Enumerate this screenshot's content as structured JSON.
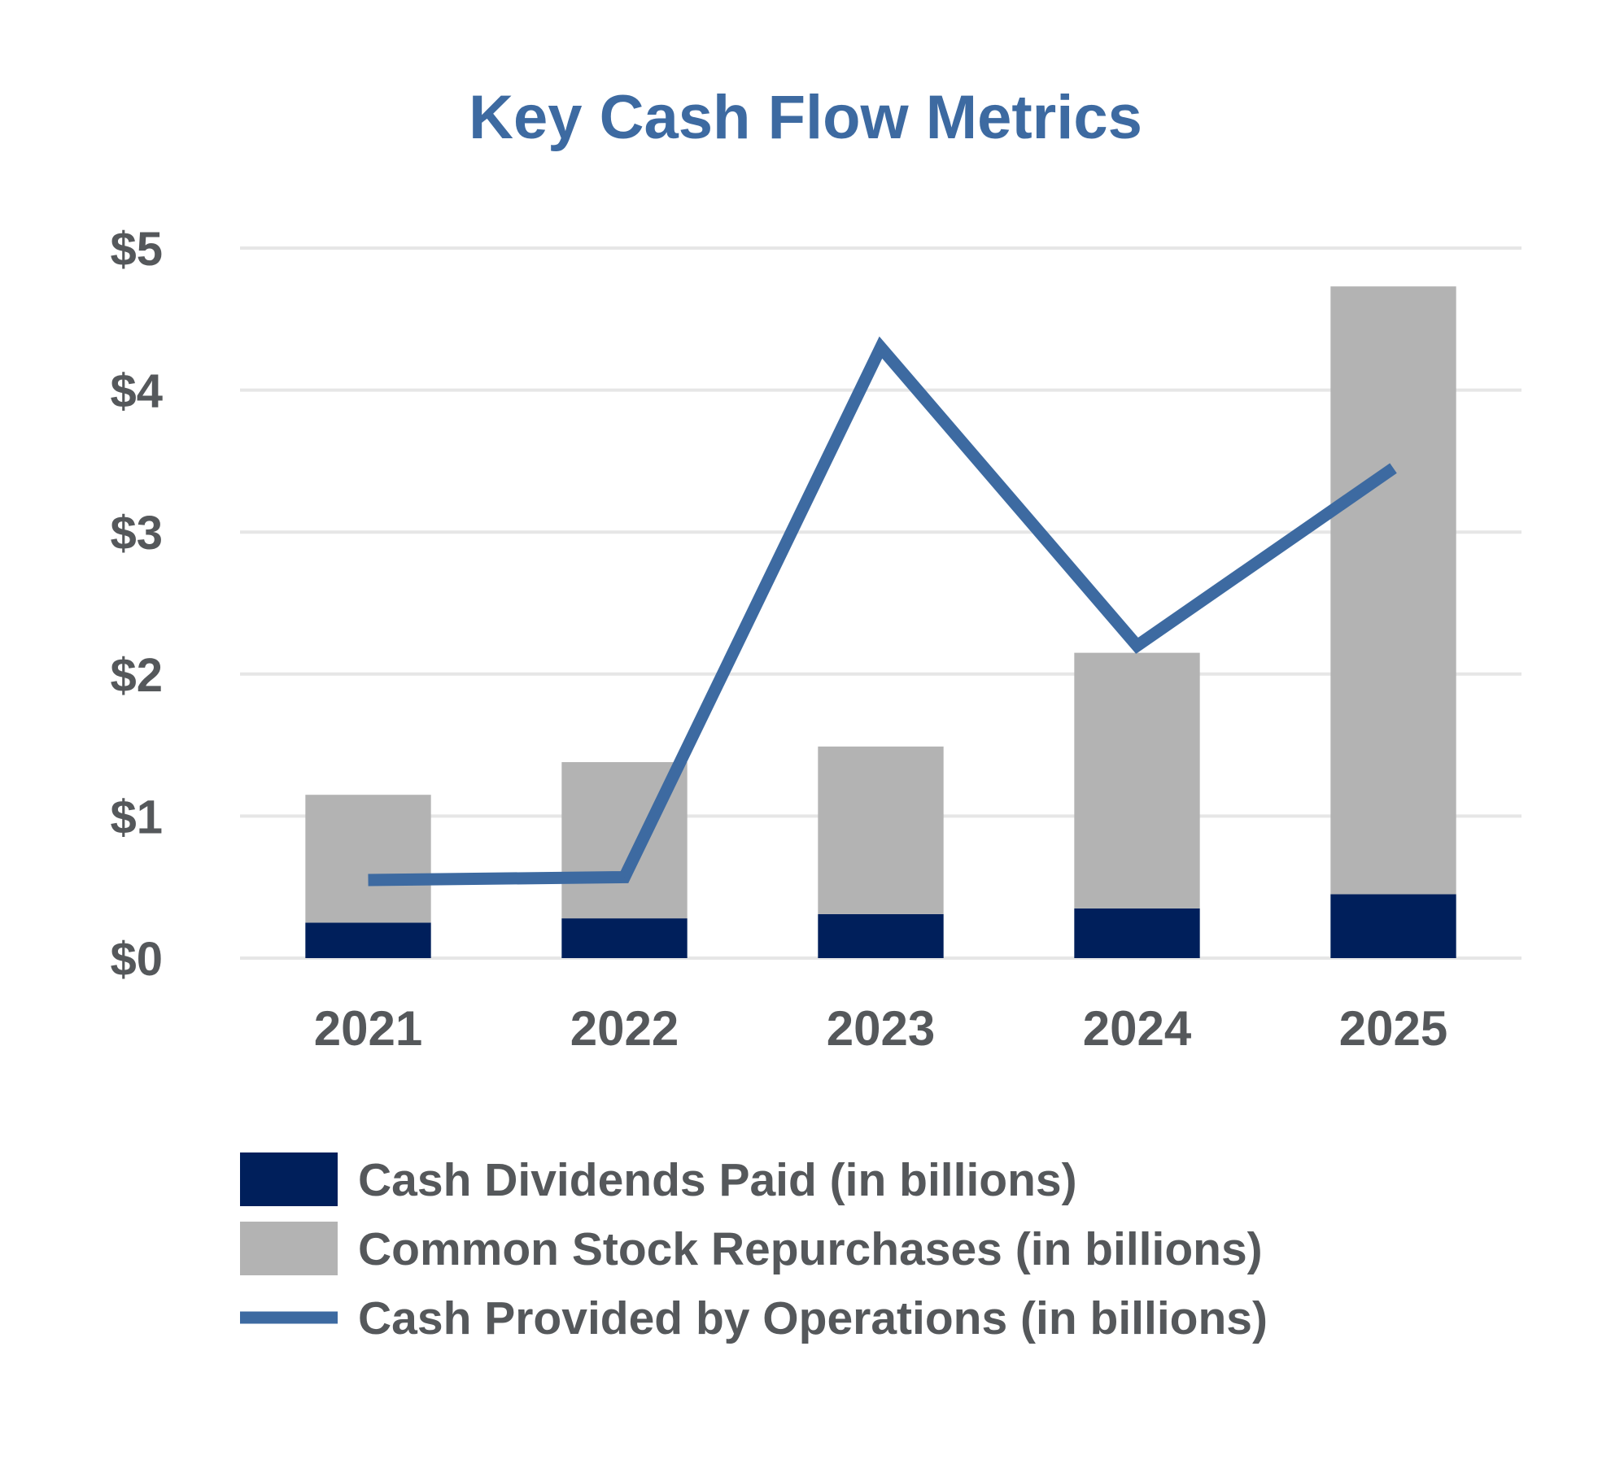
{
  "chart_data": {
    "type": "bar",
    "stacked": true,
    "title": "Key Cash Flow Metrics",
    "xlabel": "",
    "ylabel": "",
    "categories": [
      "2021",
      "2022",
      "2023",
      "2024",
      "2025"
    ],
    "ylim": [
      0,
      5
    ],
    "yticks": [
      0,
      1,
      2,
      3,
      4,
      5
    ],
    "ytick_labels": [
      "$0",
      "$1",
      "$2",
      "$3",
      "$4",
      "$5"
    ],
    "grid": true,
    "legend_position": "bottom",
    "series": [
      {
        "name": "Cash Dividends Paid (in billions)",
        "type": "bar",
        "color": "#001f5b",
        "values": [
          0.25,
          0.28,
          0.31,
          0.35,
          0.45
        ]
      },
      {
        "name": "Common Stock Repurchases (in billions)",
        "type": "bar",
        "color": "#b3b3b3",
        "values": [
          0.9,
          1.1,
          1.18,
          1.8,
          4.28
        ]
      },
      {
        "name": "Cash Provided by Operations (in billions)",
        "type": "line",
        "color": "#3d6aa1",
        "values": [
          0.55,
          0.57,
          4.3,
          2.2,
          3.45
        ]
      }
    ]
  }
}
